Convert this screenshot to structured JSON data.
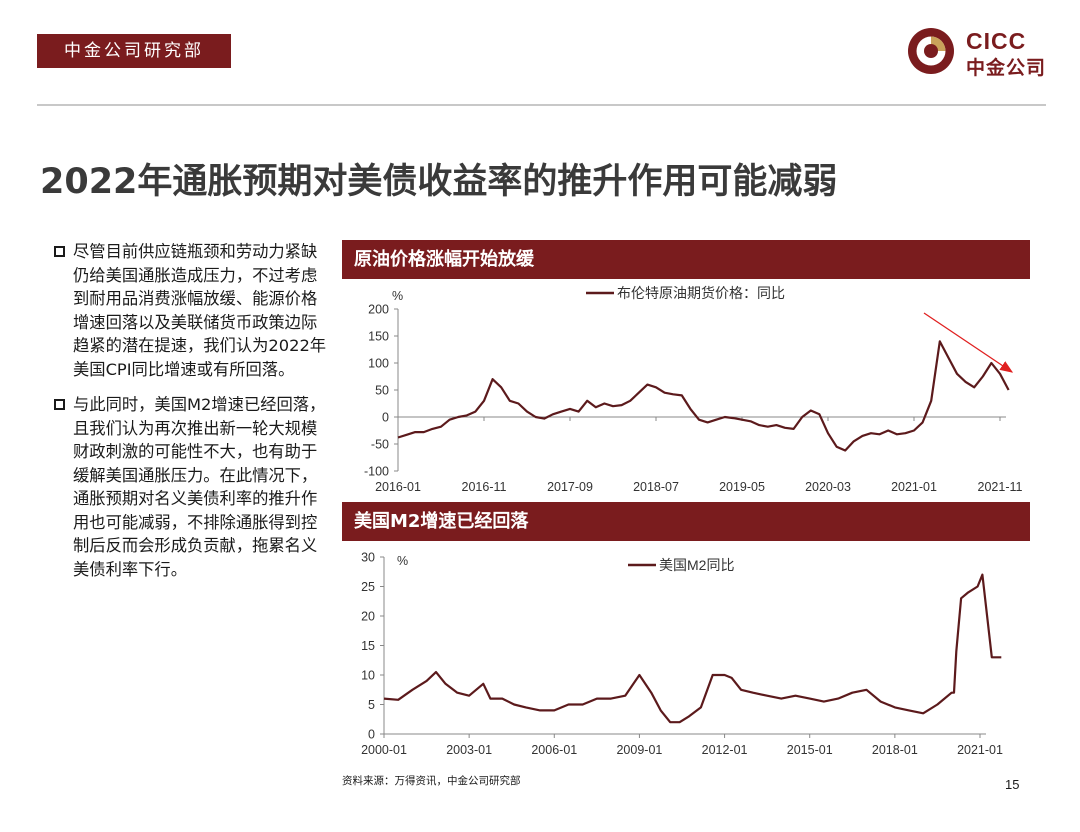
{
  "header": {
    "dept_label": "中金公司研究部",
    "logo": {
      "en": "CICC",
      "cn": "中金公司",
      "icon": "cicc-logo-icon",
      "brand_color": "#7a1c1e"
    }
  },
  "title": "2022年通胀预期对美债收益率的推升作用可能减弱",
  "bullets": [
    "尽管目前供应链瓶颈和劳动力紧缺仍给美国通胀造成压力，不过考虑到耐用品消费涨幅放缓、能源价格增速回落以及美联储货币政策边际趋紧的潜在提速，我们认为2022年美国CPI同比增速或有所回落。",
    "与此同时，美国M2增速已经回落，且我们认为再次推出新一轮大规模财政刺激的可能性不大，也有助于缓解美国通胀压力。在此情况下，通胀预期对名义美债利率的推升作用也可能减弱，不排除通胀得到控制后反而会形成负贡献，拖累名义美债利率下行。"
  ],
  "source": "资料来源：万得资讯，中金公司研究部",
  "page_number": "15",
  "chart_data": [
    {
      "type": "line",
      "title": "原油价格涨幅开始放缓",
      "unit_label": "%",
      "ylim": [
        -100,
        200
      ],
      "yticks": [
        "200",
        "150",
        "100",
        "50",
        "0",
        "-50",
        "-100"
      ],
      "xticks": [
        "2016-01",
        "2016-11",
        "2017-09",
        "2018-07",
        "2019-05",
        "2020-03",
        "2021-01",
        "2021-11"
      ],
      "legend_position": "top-center",
      "grid": false,
      "trend_arrow": true,
      "series": [
        {
          "name": "布伦特原油期货价格：同比",
          "color": "#5c1a1c",
          "points": [
            [
              "2016-01",
              -38
            ],
            [
              "2016-02",
              -33
            ],
            [
              "2016-03",
              -28
            ],
            [
              "2016-04",
              -28
            ],
            [
              "2016-05",
              -22
            ],
            [
              "2016-06",
              -18
            ],
            [
              "2016-07",
              -5
            ],
            [
              "2016-08",
              0
            ],
            [
              "2016-09",
              3
            ],
            [
              "2016-10",
              10
            ],
            [
              "2016-11",
              30
            ],
            [
              "2016-12",
              70
            ],
            [
              "2017-01",
              55
            ],
            [
              "2017-02",
              30
            ],
            [
              "2017-03",
              25
            ],
            [
              "2017-04",
              10
            ],
            [
              "2017-05",
              0
            ],
            [
              "2017-06",
              -3
            ],
            [
              "2017-07",
              5
            ],
            [
              "2017-08",
              10
            ],
            [
              "2017-09",
              15
            ],
            [
              "2017-10",
              10
            ],
            [
              "2017-11",
              30
            ],
            [
              "2017-12",
              18
            ],
            [
              "2018-01",
              25
            ],
            [
              "2018-02",
              20
            ],
            [
              "2018-03",
              22
            ],
            [
              "2018-04",
              30
            ],
            [
              "2018-05",
              45
            ],
            [
              "2018-06",
              60
            ],
            [
              "2018-07",
              55
            ],
            [
              "2018-08",
              45
            ],
            [
              "2018-09",
              42
            ],
            [
              "2018-10",
              40
            ],
            [
              "2018-11",
              15
            ],
            [
              "2018-12",
              -5
            ],
            [
              "2019-01",
              -10
            ],
            [
              "2019-02",
              -5
            ],
            [
              "2019-03",
              0
            ],
            [
              "2019-04",
              -2
            ],
            [
              "2019-05",
              -5
            ],
            [
              "2019-06",
              -8
            ],
            [
              "2019-07",
              -15
            ],
            [
              "2019-08",
              -18
            ],
            [
              "2019-09",
              -15
            ],
            [
              "2019-10",
              -20
            ],
            [
              "2019-11",
              -22
            ],
            [
              "2019-12",
              0
            ],
            [
              "2020-01",
              12
            ],
            [
              "2020-02",
              5
            ],
            [
              "2020-03",
              -30
            ],
            [
              "2020-04",
              -55
            ],
            [
              "2020-05",
              -62
            ],
            [
              "2020-06",
              -45
            ],
            [
              "2020-07",
              -35
            ],
            [
              "2020-08",
              -30
            ],
            [
              "2020-09",
              -32
            ],
            [
              "2020-10",
              -25
            ],
            [
              "2020-11",
              -32
            ],
            [
              "2020-12",
              -30
            ],
            [
              "2021-01",
              -25
            ],
            [
              "2021-02",
              -10
            ],
            [
              "2021-03",
              30
            ],
            [
              "2021-04",
              140
            ],
            [
              "2021-05",
              110
            ],
            [
              "2021-06",
              80
            ],
            [
              "2021-07",
              65
            ],
            [
              "2021-08",
              55
            ],
            [
              "2021-09",
              75
            ],
            [
              "2021-10",
              100
            ],
            [
              "2021-11",
              80
            ],
            [
              "2021-12",
              50
            ]
          ]
        }
      ]
    },
    {
      "type": "line",
      "title": "美国M2增速已经回落",
      "unit_label": "%",
      "ylim": [
        0,
        30
      ],
      "yticks": [
        "30",
        "25",
        "20",
        "15",
        "10",
        "5",
        "0"
      ],
      "xticks": [
        "2000-01",
        "2003-01",
        "2006-01",
        "2009-01",
        "2012-01",
        "2015-01",
        "2018-01",
        "2021-01"
      ],
      "legend_position": "top-center",
      "grid": false,
      "series": [
        {
          "name": "美国M2同比",
          "color": "#5c1a1c",
          "points": [
            [
              "2000-01",
              6
            ],
            [
              "2000-07",
              5.8
            ],
            [
              "2001-01",
              7.5
            ],
            [
              "2001-07",
              9
            ],
            [
              "2001-11",
              10.5
            ],
            [
              "2002-03",
              8.5
            ],
            [
              "2002-08",
              7
            ],
            [
              "2003-01",
              6.5
            ],
            [
              "2003-07",
              8.5
            ],
            [
              "2003-10",
              6
            ],
            [
              "2004-03",
              6
            ],
            [
              "2004-08",
              5
            ],
            [
              "2005-01",
              4.5
            ],
            [
              "2005-07",
              4
            ],
            [
              "2006-01",
              4
            ],
            [
              "2006-07",
              5
            ],
            [
              "2007-01",
              5
            ],
            [
              "2007-07",
              6
            ],
            [
              "2008-01",
              6
            ],
            [
              "2008-07",
              6.5
            ],
            [
              "2009-01",
              10
            ],
            [
              "2009-06",
              7
            ],
            [
              "2009-10",
              4
            ],
            [
              "2010-02",
              2
            ],
            [
              "2010-06",
              2
            ],
            [
              "2010-10",
              3
            ],
            [
              "2011-03",
              4.5
            ],
            [
              "2011-08",
              10
            ],
            [
              "2012-01",
              10
            ],
            [
              "2012-04",
              9.5
            ],
            [
              "2012-08",
              7.5
            ],
            [
              "2013-01",
              7
            ],
            [
              "2013-07",
              6.5
            ],
            [
              "2014-01",
              6
            ],
            [
              "2014-07",
              6.5
            ],
            [
              "2015-01",
              6
            ],
            [
              "2015-07",
              5.5
            ],
            [
              "2016-01",
              6
            ],
            [
              "2016-07",
              7
            ],
            [
              "2017-01",
              7.5
            ],
            [
              "2017-07",
              5.5
            ],
            [
              "2018-01",
              4.5
            ],
            [
              "2018-07",
              4
            ],
            [
              "2019-01",
              3.5
            ],
            [
              "2019-07",
              5
            ],
            [
              "2020-01",
              7
            ],
            [
              "2020-02",
              7
            ],
            [
              "2020-03",
              14
            ],
            [
              "2020-05",
              23
            ],
            [
              "2020-08",
              24
            ],
            [
              "2020-12",
              25
            ],
            [
              "2021-02",
              27
            ],
            [
              "2021-04",
              20
            ],
            [
              "2021-06",
              13
            ],
            [
              "2021-08",
              13
            ],
            [
              "2021-10",
              13
            ]
          ]
        }
      ]
    }
  ]
}
